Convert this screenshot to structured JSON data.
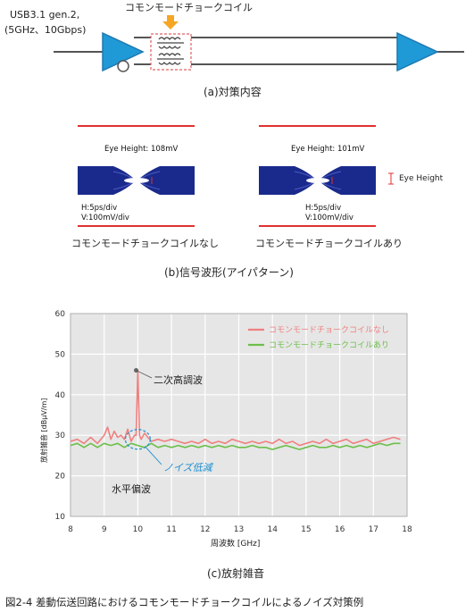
{
  "circuit": {
    "usb_line1": "USB3.1  gen.2,",
    "usb_line2": "(5GHz、10Gbps)",
    "choke_label": "コモンモードチョークコイル",
    "caption_a": "(a)対策内容"
  },
  "eye": {
    "left": {
      "height_label": "Eye Height: 108mV",
      "h_div": "H:5ps/div",
      "v_div": "V:100mV/div",
      "caption": "コモンモードチョークコイルなし"
    },
    "right": {
      "height_label": "Eye Height: 101mV",
      "h_div": "H:5ps/div",
      "v_div": "V:100mV/div",
      "caption": "コモンモードチョークコイルあり"
    },
    "side_label": "Eye Height",
    "caption_b": "(b)信号波形(アイパターン)"
  },
  "chart_data": {
    "type": "line",
    "xlabel": "周波数 [GHz]",
    "ylabel": "放射雑音 [dBμV/m]",
    "xlim": [
      8,
      18
    ],
    "ylim": [
      10,
      60
    ],
    "xticks": [
      "8",
      "9",
      "10",
      "11",
      "12",
      "13",
      "14",
      "15",
      "16",
      "17",
      "18"
    ],
    "yticks": [
      "10",
      "20",
      "30",
      "40",
      "50",
      "60"
    ],
    "grid": true,
    "legend_position": "top-right",
    "series": [
      {
        "name": "コモンモードチョークコイルなし",
        "color": "#f08080",
        "x": [
          8.0,
          8.2,
          8.4,
          8.6,
          8.8,
          9.0,
          9.1,
          9.2,
          9.3,
          9.4,
          9.5,
          9.6,
          9.7,
          9.8,
          9.9,
          9.95,
          10.0,
          10.05,
          10.1,
          10.2,
          10.3,
          10.4,
          10.6,
          10.8,
          11.0,
          11.2,
          11.4,
          11.6,
          11.8,
          12.0,
          12.2,
          12.4,
          12.6,
          12.8,
          13.0,
          13.2,
          13.4,
          13.6,
          13.8,
          14.0,
          14.2,
          14.4,
          14.6,
          14.8,
          15.0,
          15.2,
          15.4,
          15.6,
          15.8,
          16.0,
          16.2,
          16.4,
          16.6,
          16.8,
          17.0,
          17.2,
          17.4,
          17.6,
          17.8
        ],
        "y": [
          28.5,
          29,
          28,
          29.5,
          28,
          30,
          32,
          29,
          31,
          29.5,
          30,
          29,
          31.5,
          28.5,
          30,
          30,
          46,
          30,
          29,
          30.5,
          29.5,
          28.5,
          29,
          28.5,
          29,
          28.5,
          28,
          28.5,
          28,
          29,
          28,
          28.5,
          28,
          29,
          28.5,
          28,
          28.5,
          28,
          28.5,
          28,
          29,
          28,
          28.5,
          27.5,
          28,
          28.5,
          28,
          29,
          28,
          28.5,
          29,
          28,
          28.5,
          29,
          28,
          28.5,
          29,
          29.5,
          29
        ]
      },
      {
        "name": "コモンモードチョークコイルあり",
        "color": "#6cbf4a",
        "x": [
          8.0,
          8.2,
          8.4,
          8.6,
          8.8,
          9.0,
          9.2,
          9.4,
          9.6,
          9.8,
          10.0,
          10.2,
          10.4,
          10.6,
          10.8,
          11.0,
          11.2,
          11.4,
          11.6,
          11.8,
          12.0,
          12.2,
          12.4,
          12.6,
          12.8,
          13.0,
          13.2,
          13.4,
          13.6,
          13.8,
          14.0,
          14.2,
          14.4,
          14.6,
          14.8,
          15.0,
          15.2,
          15.4,
          15.6,
          15.8,
          16.0,
          16.2,
          16.4,
          16.6,
          16.8,
          17.0,
          17.2,
          17.4,
          17.6,
          17.8
        ],
        "y": [
          27.5,
          28,
          27,
          28,
          27,
          28,
          27.5,
          28,
          27,
          28,
          27.5,
          27,
          28,
          27,
          27.5,
          27,
          27.5,
          27,
          27.5,
          27,
          27.5,
          27,
          27.5,
          27,
          27.5,
          27,
          27,
          27.5,
          27,
          27,
          26.5,
          27,
          27.5,
          27,
          26.5,
          27,
          27.5,
          27,
          27,
          27.5,
          27,
          27.5,
          27,
          27.5,
          27,
          27.5,
          28,
          27.5,
          28,
          28
        ]
      }
    ],
    "annotations": {
      "peak": "二次高調波",
      "noise": "ノイズ低減",
      "horizontal": "水平偏波"
    },
    "caption_c": "(c)放射雑音"
  },
  "figure_caption": "図2-4  差動伝送回路におけるコモンモードチョークコイルによるノイズ対策例"
}
